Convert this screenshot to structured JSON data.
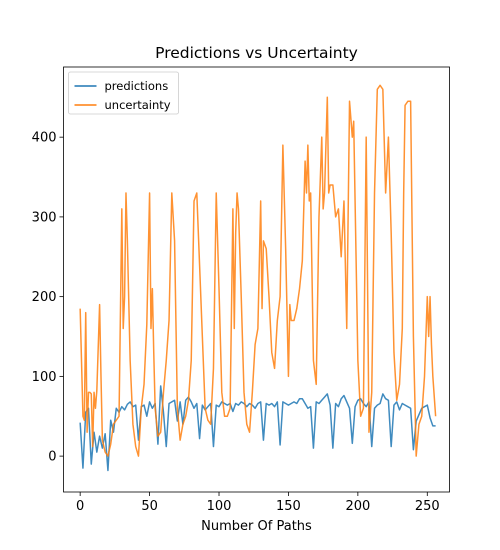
{
  "chart_data": {
    "type": "line",
    "title": "Predictions vs Uncertainty",
    "xlabel": "Number Of Paths",
    "ylabel": "",
    "xlim": [
      -12,
      266
    ],
    "ylim": [
      -45,
      488
    ],
    "xticks": [
      0,
      50,
      100,
      150,
      200,
      250
    ],
    "yticks": [
      0,
      100,
      200,
      300,
      400
    ],
    "grid": false,
    "legend": "top-left",
    "series": [
      {
        "name": "predictions",
        "color": "#1f77b4",
        "points": [
          [
            0,
            42
          ],
          [
            2,
            -15
          ],
          [
            4,
            55
          ],
          [
            6,
            60
          ],
          [
            8,
            -10
          ],
          [
            10,
            30
          ],
          [
            12,
            5
          ],
          [
            14,
            25
          ],
          [
            16,
            10
          ],
          [
            18,
            28
          ],
          [
            20,
            -18
          ],
          [
            22,
            45
          ],
          [
            24,
            30
          ],
          [
            26,
            60
          ],
          [
            28,
            55
          ],
          [
            30,
            62
          ],
          [
            32,
            58
          ],
          [
            34,
            65
          ],
          [
            36,
            68
          ],
          [
            38,
            62
          ],
          [
            40,
            64
          ],
          [
            42,
            20
          ],
          [
            44,
            62
          ],
          [
            46,
            64
          ],
          [
            48,
            50
          ],
          [
            50,
            68
          ],
          [
            52,
            60
          ],
          [
            54,
            66
          ],
          [
            56,
            15
          ],
          [
            58,
            88
          ],
          [
            60,
            55
          ],
          [
            62,
            12
          ],
          [
            64,
            66
          ],
          [
            66,
            68
          ],
          [
            68,
            70
          ],
          [
            70,
            44
          ],
          [
            72,
            68
          ],
          [
            74,
            40
          ],
          [
            76,
            70
          ],
          [
            78,
            74
          ],
          [
            80,
            68
          ],
          [
            82,
            60
          ],
          [
            84,
            66
          ],
          [
            86,
            22
          ],
          [
            88,
            64
          ],
          [
            90,
            58
          ],
          [
            92,
            62
          ],
          [
            94,
            66
          ],
          [
            96,
            12
          ],
          [
            98,
            64
          ],
          [
            100,
            62
          ],
          [
            102,
            68
          ],
          [
            104,
            66
          ],
          [
            106,
            64
          ],
          [
            108,
            66
          ],
          [
            110,
            56
          ],
          [
            112,
            66
          ],
          [
            114,
            64
          ],
          [
            116,
            68
          ],
          [
            118,
            66
          ],
          [
            120,
            62
          ],
          [
            122,
            66
          ],
          [
            124,
            64
          ],
          [
            126,
            60
          ],
          [
            128,
            66
          ],
          [
            130,
            68
          ],
          [
            132,
            20
          ],
          [
            134,
            66
          ],
          [
            136,
            64
          ],
          [
            138,
            66
          ],
          [
            140,
            62
          ],
          [
            142,
            68
          ],
          [
            144,
            14
          ],
          [
            146,
            68
          ],
          [
            148,
            66
          ],
          [
            150,
            64
          ],
          [
            152,
            66
          ],
          [
            154,
            68
          ],
          [
            156,
            66
          ],
          [
            158,
            72
          ],
          [
            160,
            72
          ],
          [
            162,
            66
          ],
          [
            164,
            60
          ],
          [
            166,
            62
          ],
          [
            168,
            10
          ],
          [
            170,
            68
          ],
          [
            172,
            66
          ],
          [
            174,
            70
          ],
          [
            176,
            74
          ],
          [
            178,
            78
          ],
          [
            180,
            64
          ],
          [
            182,
            10
          ],
          [
            184,
            66
          ],
          [
            186,
            62
          ],
          [
            188,
            72
          ],
          [
            190,
            76
          ],
          [
            192,
            68
          ],
          [
            194,
            60
          ],
          [
            196,
            16
          ],
          [
            198,
            62
          ],
          [
            200,
            70
          ],
          [
            202,
            72
          ],
          [
            204,
            66
          ],
          [
            206,
            62
          ],
          [
            208,
            68
          ],
          [
            210,
            12
          ],
          [
            212,
            60
          ],
          [
            214,
            64
          ],
          [
            216,
            66
          ],
          [
            218,
            78
          ],
          [
            220,
            72
          ],
          [
            222,
            70
          ],
          [
            224,
            12
          ],
          [
            226,
            64
          ],
          [
            228,
            68
          ],
          [
            230,
            58
          ],
          [
            232,
            66
          ],
          [
            234,
            64
          ],
          [
            236,
            62
          ],
          [
            238,
            60
          ],
          [
            240,
            8
          ],
          [
            242,
            44
          ],
          [
            244,
            52
          ],
          [
            246,
            60
          ],
          [
            248,
            62
          ],
          [
            250,
            64
          ],
          [
            252,
            48
          ],
          [
            254,
            38
          ],
          [
            256,
            38
          ]
        ]
      },
      {
        "name": "uncertainty",
        "color": "#ff7f0e",
        "points": [
          [
            0,
            185
          ],
          [
            2,
            50
          ],
          [
            3,
            45
          ],
          [
            4,
            180
          ],
          [
            5,
            30
          ],
          [
            6,
            80
          ],
          [
            7,
            80
          ],
          [
            8,
            78
          ],
          [
            9,
            12
          ],
          [
            10,
            80
          ],
          [
            11,
            60
          ],
          [
            12,
            82
          ],
          [
            14,
            190
          ],
          [
            15,
            100
          ],
          [
            16,
            20
          ],
          [
            18,
            5
          ],
          [
            20,
            0
          ],
          [
            22,
            15
          ],
          [
            24,
            40
          ],
          [
            26,
            45
          ],
          [
            28,
            50
          ],
          [
            30,
            310
          ],
          [
            31,
            160
          ],
          [
            32,
            200
          ],
          [
            33,
            330
          ],
          [
            34,
            270
          ],
          [
            36,
            120
          ],
          [
            38,
            40
          ],
          [
            40,
            12
          ],
          [
            42,
            0
          ],
          [
            44,
            60
          ],
          [
            46,
            90
          ],
          [
            48,
            165
          ],
          [
            50,
            330
          ],
          [
            51,
            160
          ],
          [
            52,
            210
          ],
          [
            53,
            130
          ],
          [
            54,
            60
          ],
          [
            56,
            25
          ],
          [
            58,
            30
          ],
          [
            60,
            80
          ],
          [
            62,
            120
          ],
          [
            64,
            170
          ],
          [
            66,
            330
          ],
          [
            68,
            270
          ],
          [
            70,
            60
          ],
          [
            72,
            20
          ],
          [
            74,
            40
          ],
          [
            76,
            50
          ],
          [
            78,
            70
          ],
          [
            80,
            120
          ],
          [
            82,
            320
          ],
          [
            84,
            330
          ],
          [
            86,
            240
          ],
          [
            88,
            150
          ],
          [
            90,
            60
          ],
          [
            92,
            45
          ],
          [
            94,
            40
          ],
          [
            96,
            110
          ],
          [
            98,
            330
          ],
          [
            100,
            210
          ],
          [
            102,
            80
          ],
          [
            104,
            50
          ],
          [
            106,
            50
          ],
          [
            108,
            60
          ],
          [
            110,
            310
          ],
          [
            111,
            160
          ],
          [
            112,
            280
          ],
          [
            113,
            330
          ],
          [
            114,
            310
          ],
          [
            116,
            200
          ],
          [
            118,
            80
          ],
          [
            120,
            40
          ],
          [
            122,
            30
          ],
          [
            124,
            80
          ],
          [
            126,
            140
          ],
          [
            128,
            160
          ],
          [
            130,
            320
          ],
          [
            131,
            185
          ],
          [
            132,
            270
          ],
          [
            134,
            260
          ],
          [
            136,
            200
          ],
          [
            138,
            130
          ],
          [
            140,
            110
          ],
          [
            142,
            170
          ],
          [
            144,
            200
          ],
          [
            146,
            390
          ],
          [
            148,
            260
          ],
          [
            150,
            100
          ],
          [
            151,
            190
          ],
          [
            152,
            170
          ],
          [
            154,
            170
          ],
          [
            156,
            185
          ],
          [
            158,
            210
          ],
          [
            160,
            245
          ],
          [
            162,
            370
          ],
          [
            163,
            330
          ],
          [
            164,
            390
          ],
          [
            165,
            320
          ],
          [
            166,
            330
          ],
          [
            168,
            120
          ],
          [
            170,
            90
          ],
          [
            172,
            300
          ],
          [
            174,
            400
          ],
          [
            175,
            310
          ],
          [
            176,
            330
          ],
          [
            178,
            450
          ],
          [
            179,
            330
          ],
          [
            180,
            340
          ],
          [
            182,
            340
          ],
          [
            184,
            300
          ],
          [
            186,
            310
          ],
          [
            188,
            250
          ],
          [
            190,
            320
          ],
          [
            192,
            160
          ],
          [
            194,
            445
          ],
          [
            196,
            400
          ],
          [
            197,
            420
          ],
          [
            198,
            320
          ],
          [
            200,
            120
          ],
          [
            202,
            50
          ],
          [
            204,
            60
          ],
          [
            206,
            400
          ],
          [
            208,
            30
          ],
          [
            210,
            80
          ],
          [
            212,
            330
          ],
          [
            214,
            460
          ],
          [
            216,
            465
          ],
          [
            218,
            460
          ],
          [
            220,
            330
          ],
          [
            222,
            400
          ],
          [
            224,
            280
          ],
          [
            226,
            130
          ],
          [
            228,
            70
          ],
          [
            230,
            90
          ],
          [
            232,
            160
          ],
          [
            233,
            330
          ],
          [
            234,
            440
          ],
          [
            236,
            445
          ],
          [
            238,
            445
          ],
          [
            240,
            150
          ],
          [
            242,
            0
          ],
          [
            244,
            40
          ],
          [
            246,
            50
          ],
          [
            248,
            100
          ],
          [
            250,
            200
          ],
          [
            251,
            150
          ],
          [
            252,
            200
          ],
          [
            253,
            140
          ],
          [
            254,
            100
          ],
          [
            256,
            50
          ]
        ]
      }
    ]
  }
}
